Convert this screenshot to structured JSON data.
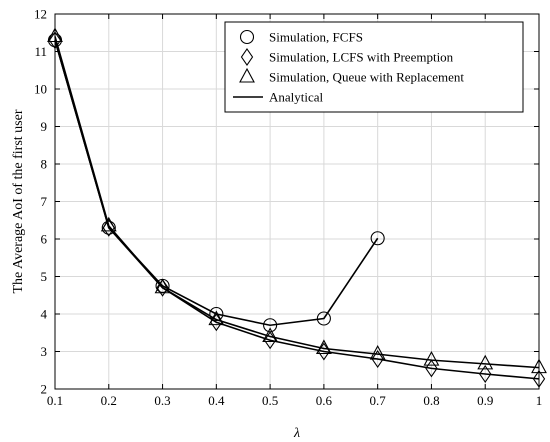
{
  "chart_data": {
    "type": "line",
    "title": "",
    "xlabel": "λ",
    "ylabel": "The Average AoI of the first user",
    "xlim": [
      0.1,
      1
    ],
    "ylim": [
      2,
      12
    ],
    "xticks": [
      "0.1",
      "0.2",
      "0.3",
      "0.4",
      "0.5",
      "0.6",
      "0.7",
      "0.8",
      "0.9",
      "1"
    ],
    "yticks": [
      "2",
      "3",
      "4",
      "5",
      "6",
      "7",
      "8",
      "9",
      "10",
      "11",
      "12"
    ],
    "grid": true,
    "legend_position": "top-right",
    "series": [
      {
        "name": "Simulation, FCFS",
        "marker": "circle",
        "line": true,
        "x": [
          0.1,
          0.2,
          0.3,
          0.4,
          0.5,
          0.6,
          0.7
        ],
        "y": [
          11.3,
          6.3,
          4.75,
          4.0,
          3.7,
          3.88,
          6.02
        ]
      },
      {
        "name": "Simulation, LCFS with Preemption",
        "marker": "diamond",
        "line": false,
        "x": [
          0.1,
          0.2,
          0.3,
          0.4,
          0.5,
          0.6,
          0.7,
          0.8,
          0.9,
          1
        ],
        "y": [
          11.3,
          6.3,
          4.7,
          3.78,
          3.3,
          3.0,
          2.8,
          2.55,
          2.4,
          2.27
        ]
      },
      {
        "name": "Simulation, Queue with Replacement",
        "marker": "triangle",
        "line": false,
        "x": [
          0.1,
          0.2,
          0.3,
          0.4,
          0.5,
          0.6,
          0.7,
          0.8,
          0.9,
          1
        ],
        "y": [
          11.4,
          6.35,
          4.7,
          3.85,
          3.4,
          3.08,
          2.93,
          2.77,
          2.67,
          2.57
        ]
      },
      {
        "name": "Analytical",
        "marker": "none",
        "line": true,
        "x": [
          0.1,
          0.2,
          0.3,
          0.4,
          0.5,
          0.6,
          0.7,
          0.8,
          0.9,
          1
        ],
        "y": [
          11.3,
          6.3,
          4.7,
          3.78,
          3.3,
          3.0,
          2.8,
          2.55,
          2.4,
          2.27
        ]
      },
      {
        "name": "Analytical",
        "marker": "none",
        "line": true,
        "hide_legend": true,
        "x": [
          0.1,
          0.2,
          0.3,
          0.4,
          0.5,
          0.6,
          0.7,
          0.8,
          0.9,
          1
        ],
        "y": [
          11.4,
          6.35,
          4.7,
          3.85,
          3.4,
          3.08,
          2.93,
          2.77,
          2.67,
          2.57
        ]
      }
    ]
  }
}
